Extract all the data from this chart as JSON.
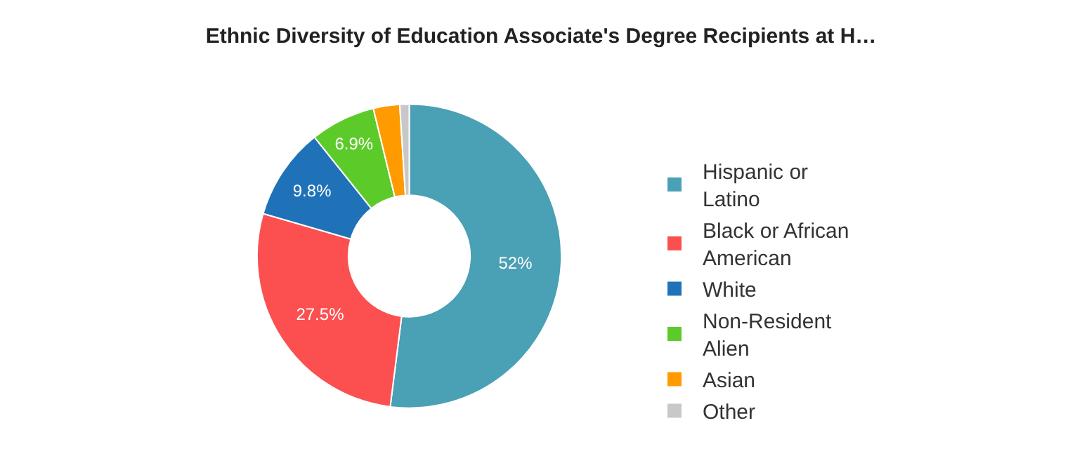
{
  "chart_data": {
    "type": "donut",
    "title": "Ethnic Diversity of Education Associate's Degree Recipients at H…",
    "categories": [
      "Hispanic or Latino",
      "Black or African American",
      "White",
      "Non-Resident Alien",
      "Asian",
      "Other"
    ],
    "values": [
      52,
      27.5,
      9.8,
      6.9,
      2.8,
      1.0
    ],
    "colors": [
      "#4aa0b4",
      "#fc5050",
      "#1f72b8",
      "#5ccb2a",
      "#ff9a00",
      "#c8c8c8"
    ],
    "value_labels": [
      "52%",
      "27.5%",
      "9.8%",
      "6.9%",
      null,
      null
    ],
    "legend": "right"
  }
}
